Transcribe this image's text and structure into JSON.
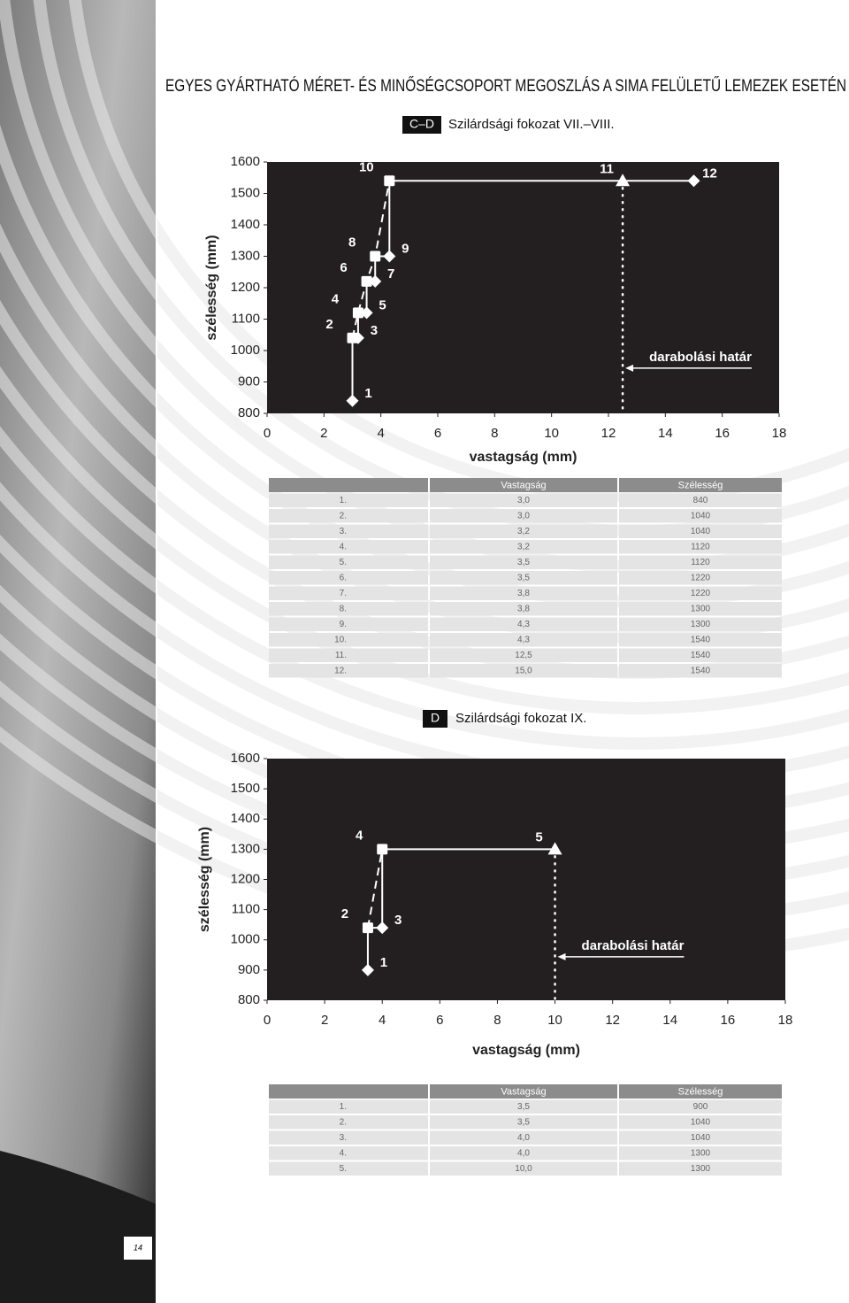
{
  "header": {
    "title": "EGYES GYÁRTHATÓ MÉRET- ÉS MINŐSÉGCSOPORT MEGOSZLÁS A SIMA FELÜLETŰ LEMEZEK ESETÉN"
  },
  "sections": [
    {
      "tag": "C–D",
      "label": "Szilárdsági fokozat VII.–VIII."
    },
    {
      "tag": "D",
      "label": "Szilárdsági fokozat IX."
    }
  ],
  "chart_data": [
    {
      "type": "line",
      "x_label": "vastagság (mm)",
      "y_label": "szélesség (mm)",
      "x": [
        3.0,
        3.0,
        3.2,
        3.2,
        3.5,
        3.5,
        3.8,
        3.8,
        4.3,
        4.3,
        12.5,
        15.0
      ],
      "values": [
        840,
        1040,
        1040,
        1120,
        1120,
        1220,
        1220,
        1300,
        1300,
        1540,
        1540,
        1540
      ],
      "point_labels": [
        "1",
        "2",
        "3",
        "4",
        "5",
        "6",
        "7",
        "8",
        "9",
        "10",
        "11",
        "12"
      ],
      "markers": [
        "diamond",
        "square",
        "diamond",
        "square",
        "diamond",
        "square",
        "diamond",
        "square",
        "diamond",
        "square",
        "triangle",
        "diamond"
      ],
      "color": "#ffffff",
      "background": "#231f20",
      "xlim": [
        0,
        18
      ],
      "xticks": [
        0,
        2,
        4,
        6,
        8,
        10,
        12,
        14,
        16,
        18
      ],
      "ylim": [
        800,
        1600
      ],
      "yticks": [
        800,
        900,
        1000,
        1100,
        1200,
        1300,
        1400,
        1500,
        1600
      ],
      "annotation": {
        "text": "darabolási határ",
        "x": 12.5
      }
    },
    {
      "type": "line",
      "x_label": "vastagság (mm)",
      "y_label": "szélesség (mm)",
      "x": [
        3.5,
        3.5,
        4.0,
        4.0,
        10.0
      ],
      "values": [
        900,
        1040,
        1040,
        1300,
        1300
      ],
      "point_labels": [
        "1",
        "2",
        "3",
        "4",
        "5"
      ],
      "markers": [
        "diamond",
        "square",
        "diamond",
        "square",
        "triangle"
      ],
      "color": "#ffffff",
      "background": "#231f20",
      "xlim": [
        0,
        18
      ],
      "xticks": [
        0,
        2,
        4,
        6,
        8,
        10,
        12,
        14,
        16,
        18
      ],
      "ylim": [
        800,
        1600
      ],
      "yticks": [
        800,
        900,
        1000,
        1100,
        1200,
        1300,
        1400,
        1500,
        1600
      ],
      "annotation": {
        "text": "darabolási határ",
        "x": 10
      }
    }
  ],
  "tables": [
    {
      "columns": [
        "Vastagság",
        "Szélesség"
      ],
      "rows": [
        [
          "1.",
          "3,0",
          "840"
        ],
        [
          "2.",
          "3,0",
          "1040"
        ],
        [
          "3.",
          "3,2",
          "1040"
        ],
        [
          "4.",
          "3,2",
          "1120"
        ],
        [
          "5.",
          "3,5",
          "1120"
        ],
        [
          "6.",
          "3,5",
          "1220"
        ],
        [
          "7.",
          "3,8",
          "1220"
        ],
        [
          "8.",
          "3,8",
          "1300"
        ],
        [
          "9.",
          "4,3",
          "1300"
        ],
        [
          "10.",
          "4,3",
          "1540"
        ],
        [
          "11.",
          "12,5",
          "1540"
        ],
        [
          "12.",
          "15,0",
          "1540"
        ]
      ]
    },
    {
      "columns": [
        "Vastagság",
        "Szélesség"
      ],
      "rows": [
        [
          "1.",
          "3,5",
          "900"
        ],
        [
          "2.",
          "3,5",
          "1040"
        ],
        [
          "3.",
          "4,0",
          "1040"
        ],
        [
          "4.",
          "4,0",
          "1300"
        ],
        [
          "5.",
          "10,0",
          "1300"
        ]
      ]
    }
  ],
  "page_number": "14"
}
